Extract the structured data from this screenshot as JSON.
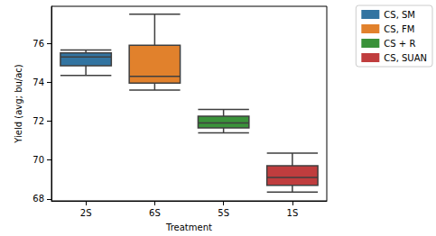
{
  "chart_data": {
    "type": "boxplot",
    "x_label": "Treatment",
    "y_label": "Yield (avg; bu/ac)",
    "categories": [
      "2S",
      "6S",
      "5S",
      "1S"
    ],
    "series": [
      {
        "name": "CS, SM",
        "color": "#3274a1",
        "values": [
          [
            74.35,
            74.85,
            75.3,
            75.5,
            75.65
          ],
          null,
          null,
          null
        ]
      },
      {
        "name": "CS, FM",
        "color": "#e1812c",
        "values": [
          null,
          [
            73.6,
            73.95,
            74.3,
            75.9,
            77.5
          ],
          null,
          null
        ]
      },
      {
        "name": "CS + R",
        "color": "#3a923a",
        "values": [
          null,
          null,
          [
            71.4,
            71.65,
            71.9,
            72.25,
            72.6
          ],
          null
        ]
      },
      {
        "name": "CS, SUAN",
        "color": "#c03d3e",
        "values": [
          null,
          null,
          null,
          [
            68.35,
            68.7,
            69.1,
            69.7,
            70.35
          ]
        ]
      }
    ],
    "ylim": [
      67.9,
      77.9
    ],
    "yticks": [
      68,
      70,
      72,
      74,
      76
    ],
    "grid": false,
    "legend": "upper right"
  }
}
